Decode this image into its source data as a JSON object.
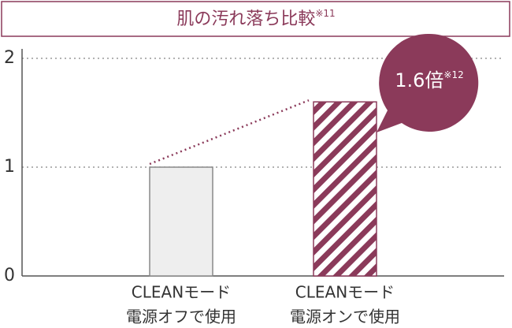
{
  "chart_data": {
    "type": "bar",
    "title": "肌の汚れ落ち比較",
    "title_note": "※11",
    "categories": [
      [
        "CLEANモード",
        "電源オフで使用"
      ],
      [
        "CLEANモード",
        "電源オンで使用"
      ]
    ],
    "values": [
      1,
      1.6
    ],
    "colors": [
      "#eeeeee",
      "#8b3a5a"
    ],
    "patterns": [
      "solid",
      "hatch"
    ],
    "ylim": [
      0,
      2
    ],
    "yticks": [
      0,
      1,
      2
    ],
    "grid": true,
    "annotation": {
      "text": "1.6倍",
      "note": "※12",
      "color": "#8b3a5a"
    }
  }
}
